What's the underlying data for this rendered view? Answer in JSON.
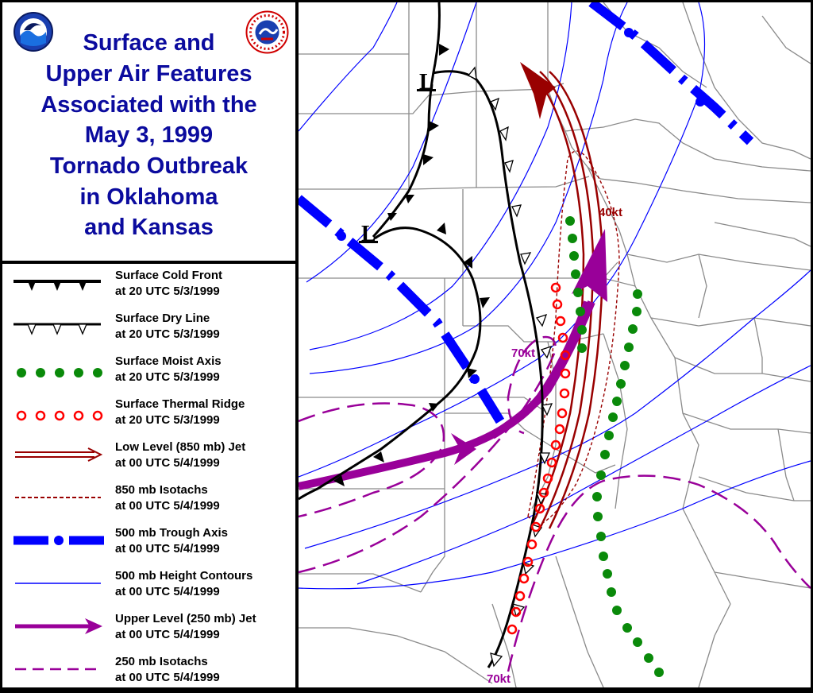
{
  "title": {
    "lines": [
      "Surface and",
      "Upper Air Features",
      "Associated with the",
      "May 3, 1999",
      "Tornado Outbreak",
      "in Oklahoma",
      "and Kansas"
    ],
    "color": "#0b0b9e"
  },
  "logos": {
    "left": "NOAA",
    "right": "NATIONAL WEATHER SERVICE"
  },
  "legend": [
    {
      "id": "cold-front",
      "line1": "Surface Cold Front",
      "line2": "at 20 UTC 5/3/1999"
    },
    {
      "id": "dry-line",
      "line1": "Surface Dry Line",
      "line2": "at 20 UTC 5/3/1999"
    },
    {
      "id": "moist-axis",
      "line1": "Surface Moist Axis",
      "line2": "at 20 UTC 5/3/1999"
    },
    {
      "id": "thermal-ridge",
      "line1": "Surface Thermal Ridge",
      "line2": "at 20 UTC 5/3/1999"
    },
    {
      "id": "low-level-jet",
      "line1": "Low Level (850 mb) Jet",
      "line2": "at 00 UTC 5/4/1999"
    },
    {
      "id": "isotachs-850",
      "line1": "850 mb Isotachs",
      "line2": "at 00 UTC 5/4/1999"
    },
    {
      "id": "trough-500",
      "line1": "500 mb Trough Axis",
      "line2": "at 00 UTC 5/4/1999"
    },
    {
      "id": "height-500",
      "line1": "500 mb Height Contours",
      "line2": "at 00 UTC 5/4/1999"
    },
    {
      "id": "upper-jet",
      "line1": "Upper Level (250 mb) Jet",
      "line2": "at 00 UTC 5/4/1999"
    },
    {
      "id": "isotachs-250",
      "line1": "250 mb Isotachs",
      "line2": "at 00 UTC 5/4/1999"
    }
  ],
  "map_labels": {
    "low1": "L",
    "low2": "L",
    "iso850": "40kt",
    "iso250_a": "70kt",
    "iso250_b": "70kt"
  },
  "colors": {
    "cold_front": "#000000",
    "moist_axis": "#0a8a0a",
    "thermal_ridge": "#ff0000",
    "low_jet": "#990000",
    "trough": "#0000ff",
    "height": "#0000ff",
    "upper_jet": "#990099",
    "isotach_250": "#990099",
    "isotach_850": "#990000"
  }
}
